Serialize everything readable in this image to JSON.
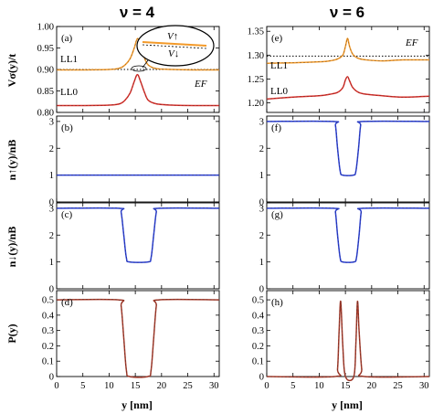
{
  "titles": {
    "left": "ν = 4",
    "right": "ν = 6"
  },
  "y_axis_labels": {
    "row1": "Vσ(y)/t",
    "row2": "n↑(y)/nB",
    "row3": "n↓(y)/nB",
    "row4": "P(y)"
  },
  "x_axis_label": "y [nm]",
  "annotations": {
    "ef": "EF",
    "v_up": "V↑",
    "v_down": "V↓",
    "ll1": "LL1",
    "ll0": "LL0"
  },
  "chart_data": [
    {
      "id": "a",
      "panel_label": "(a)",
      "type": "line",
      "xlim": [
        0,
        31
      ],
      "ylim": [
        0.8,
        1.0
      ],
      "xticks": [
        0,
        5,
        10,
        15,
        20,
        25,
        30
      ],
      "yticks": [
        0.8,
        0.85,
        0.9,
        0.95,
        1.0
      ],
      "ytick_labels": [
        "0.80",
        "0.85",
        "0.90",
        "0.95",
        "1.00"
      ],
      "fermi_level": 0.9,
      "series": [
        {
          "name": "LL1",
          "color": "#f39a2a",
          "x": [
            0,
            5,
            10,
            12,
            13,
            14,
            14.8,
            15.4,
            16,
            16.8,
            17.5,
            19,
            22,
            26,
            31
          ],
          "y": [
            0.899,
            0.899,
            0.9,
            0.903,
            0.91,
            0.925,
            0.95,
            0.972,
            0.955,
            0.925,
            0.91,
            0.902,
            0.9,
            0.899,
            0.899
          ]
        },
        {
          "name": "LL0",
          "color": "#d9302a",
          "x": [
            0,
            5,
            10,
            12,
            13,
            14,
            14.8,
            15.4,
            16,
            16.8,
            17.5,
            19,
            22,
            26,
            31
          ],
          "y": [
            0.816,
            0.816,
            0.817,
            0.82,
            0.828,
            0.845,
            0.872,
            0.888,
            0.872,
            0.845,
            0.828,
            0.82,
            0.817,
            0.816,
            0.816
          ]
        }
      ]
    },
    {
      "id": "e",
      "panel_label": "(e)",
      "type": "line",
      "xlim": [
        0,
        31
      ],
      "ylim": [
        1.18,
        1.36
      ],
      "xticks": [
        0,
        5,
        10,
        15,
        20,
        25,
        30
      ],
      "yticks": [
        1.2,
        1.25,
        1.3,
        1.35
      ],
      "ytick_labels": [
        "1.20",
        "1.25",
        "1.30",
        "1.35"
      ],
      "fermi_level": 1.298,
      "series": [
        {
          "name": "LL1",
          "color": "#f39a2a",
          "x": [
            0,
            5,
            10,
            12,
            13.5,
            14.5,
            15,
            15.4,
            15.8,
            16.4,
            17.5,
            19,
            22,
            26,
            31
          ],
          "y": [
            1.283,
            1.284,
            1.286,
            1.288,
            1.292,
            1.3,
            1.318,
            1.335,
            1.318,
            1.302,
            1.293,
            1.29,
            1.288,
            1.29,
            1.29
          ]
        },
        {
          "name": "LL0",
          "color": "#d9302a",
          "x": [
            0,
            5,
            10,
            12,
            13.5,
            14.5,
            15,
            15.4,
            15.8,
            16.4,
            17.5,
            19,
            22,
            26,
            31
          ],
          "y": [
            1.208,
            1.212,
            1.215,
            1.218,
            1.222,
            1.232,
            1.248,
            1.255,
            1.246,
            1.232,
            1.222,
            1.218,
            1.215,
            1.212,
            1.214
          ]
        }
      ]
    },
    {
      "id": "b",
      "panel_label": "(b)",
      "type": "line",
      "xlim": [
        0,
        31
      ],
      "ylim": [
        0,
        3.2
      ],
      "xticks": [
        0,
        5,
        10,
        15,
        20,
        25,
        30
      ],
      "yticks": [
        0,
        1,
        2,
        3
      ],
      "ytick_labels": [
        "0",
        "1",
        "2",
        "3"
      ],
      "series": [
        {
          "name": "",
          "color": "#2a3fd6",
          "x": [
            0,
            31
          ],
          "y": [
            1,
            1
          ]
        }
      ]
    },
    {
      "id": "f",
      "panel_label": "(f)",
      "type": "line",
      "xlim": [
        0,
        31
      ],
      "ylim": [
        0,
        3.2
      ],
      "xticks": [
        0,
        5,
        10,
        15,
        20,
        25,
        30
      ],
      "yticks": [
        0,
        1,
        2,
        3
      ],
      "ytick_labels": [
        "0",
        "1",
        "2",
        "3"
      ],
      "series": [
        {
          "name": "",
          "color": "#2a3fd6",
          "x": [
            0,
            12.6,
            13.1,
            13.5,
            14.0,
            14.5,
            16.5,
            17.0,
            17.5,
            17.9,
            18.4,
            31
          ],
          "y": [
            3,
            3,
            2.85,
            2.0,
            1.15,
            1.0,
            1.0,
            1.15,
            2.0,
            2.85,
            3,
            3
          ]
        }
      ]
    },
    {
      "id": "c",
      "panel_label": "(c)",
      "type": "line",
      "xlim": [
        0,
        31
      ],
      "ylim": [
        0,
        3.2
      ],
      "xticks": [
        0,
        5,
        10,
        15,
        20,
        25,
        30
      ],
      "yticks": [
        0,
        1,
        2,
        3
      ],
      "ytick_labels": [
        "0",
        "1",
        "2",
        "3"
      ],
      "series": [
        {
          "name": "",
          "color": "#2a3fd6",
          "x": [
            0,
            11.8,
            12.3,
            12.8,
            13.3,
            13.9,
            17.4,
            18.0,
            18.5,
            19.0,
            19.5,
            31
          ],
          "y": [
            3,
            3,
            2.85,
            2.0,
            1.15,
            1.0,
            1.0,
            1.15,
            2.0,
            2.85,
            3,
            3
          ]
        }
      ]
    },
    {
      "id": "g",
      "panel_label": "(g)",
      "type": "line",
      "xlim": [
        0,
        31
      ],
      "ylim": [
        0,
        3.2
      ],
      "xticks": [
        0,
        5,
        10,
        15,
        20,
        25,
        30
      ],
      "yticks": [
        0,
        1,
        2,
        3
      ],
      "ytick_labels": [
        "0",
        "1",
        "2",
        "3"
      ],
      "series": [
        {
          "name": "",
          "color": "#2a3fd6",
          "x": [
            0,
            12.7,
            13.1,
            13.5,
            14.0,
            14.5,
            16.6,
            17.1,
            17.6,
            18.0,
            18.4,
            31
          ],
          "y": [
            3,
            3,
            2.85,
            2.0,
            1.15,
            1.0,
            1.0,
            1.15,
            2.0,
            2.85,
            3,
            3
          ]
        }
      ]
    },
    {
      "id": "d",
      "panel_label": "(d)",
      "type": "line",
      "xlim": [
        0,
        31
      ],
      "ylim": [
        0,
        0.56
      ],
      "xticks": [
        0,
        5,
        10,
        15,
        20,
        25,
        30
      ],
      "yticks": [
        0,
        0.1,
        0.2,
        0.3,
        0.4,
        0.5
      ],
      "ytick_labels": [
        "0",
        "0.1",
        "0.2",
        "0.3",
        "0.4",
        "0.5"
      ],
      "series": [
        {
          "name": "",
          "color": "#a63a2a",
          "x": [
            0,
            11.8,
            12.3,
            12.8,
            13.3,
            13.9,
            17.4,
            18.0,
            18.5,
            19.0,
            19.5,
            31
          ],
          "y": [
            0.5,
            0.5,
            0.46,
            0.25,
            0.04,
            0.0,
            0.0,
            0.04,
            0.25,
            0.46,
            0.5,
            0.5
          ]
        }
      ]
    },
    {
      "id": "h",
      "panel_label": "(h)",
      "type": "line",
      "xlim": [
        0,
        31
      ],
      "ylim": [
        0,
        0.56
      ],
      "xticks": [
        0,
        5,
        10,
        15,
        20,
        25,
        30
      ],
      "yticks": [
        0,
        0.1,
        0.2,
        0.3,
        0.4,
        0.5
      ],
      "ytick_labels": [
        "0",
        "0.1",
        "0.2",
        "0.3",
        "0.4",
        "0.5"
      ],
      "series": [
        {
          "name": "",
          "color": "#a63a2a",
          "x": [
            0,
            13.0,
            13.5,
            13.8,
            14.1,
            14.5,
            15.0,
            16.6,
            17.0,
            17.3,
            17.6,
            18.1,
            18.6,
            31
          ],
          "y": [
            0,
            0,
            0.05,
            0.3,
            0.49,
            0.2,
            0.0,
            0.0,
            0.22,
            0.49,
            0.3,
            0.05,
            0,
            0
          ]
        }
      ]
    }
  ]
}
